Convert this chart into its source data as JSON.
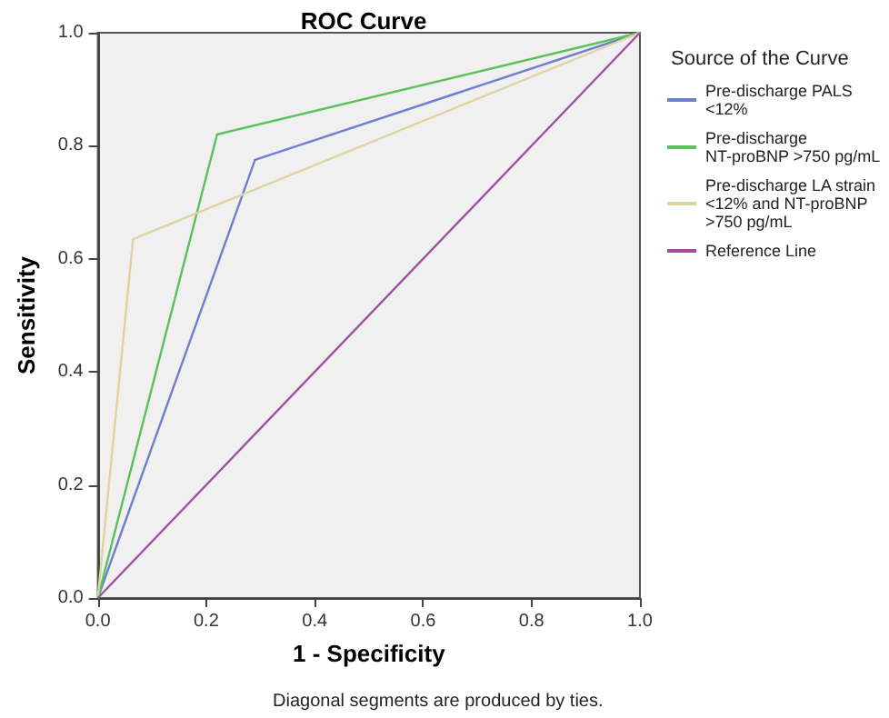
{
  "chart_data": {
    "type": "line",
    "title": "ROC Curve",
    "xlabel": "1 - Specificity",
    "ylabel": "Sensitivity",
    "legend_title": "Source of the Curve",
    "annotations": [
      "Diagonal segments are produced by ties."
    ],
    "series": [
      {
        "name": "Pre-discharge PALS <12%",
        "color": "#6f7fd0",
        "x": [
          0,
          0.29,
          1
        ],
        "values": [
          0,
          0.775,
          1
        ]
      },
      {
        "name": "Pre-discharge NT-proBNP >750 pg/mL",
        "color": "#5bc15b",
        "x": [
          0,
          0.22,
          1
        ],
        "values": [
          0,
          0.82,
          1
        ]
      },
      {
        "name": "Pre-discharge LA strain <12% and NT-proBNP >750 pg/mL",
        "color": "#ddd4a0",
        "x": [
          0,
          0.065,
          1
        ],
        "values": [
          0,
          0.635,
          1
        ]
      },
      {
        "name": "Reference Line",
        "color": "#a050a0",
        "x": [
          0,
          1
        ],
        "values": [
          0,
          1
        ]
      }
    ],
    "xlim": [
      0,
      1
    ],
    "ylim": [
      0,
      1
    ],
    "xticks": [
      {
        "value": 0,
        "label": "0.0"
      },
      {
        "value": 0.2,
        "label": "0.2"
      },
      {
        "value": 0.4,
        "label": "0.4"
      },
      {
        "value": 0.6,
        "label": "0.6"
      },
      {
        "value": 0.8,
        "label": "0.8"
      },
      {
        "value": 1,
        "label": "1.0"
      }
    ],
    "yticks": [
      {
        "value": 0,
        "label": "0.0"
      },
      {
        "value": 0.2,
        "label": "0.2"
      },
      {
        "value": 0.4,
        "label": "0.4"
      },
      {
        "value": 0.6,
        "label": "0.6"
      },
      {
        "value": 0.8,
        "label": "0.8"
      },
      {
        "value": 1,
        "label": "1.0"
      }
    ],
    "grid": false,
    "legend": "right",
    "marker": "none",
    "line_style": "solid"
  }
}
